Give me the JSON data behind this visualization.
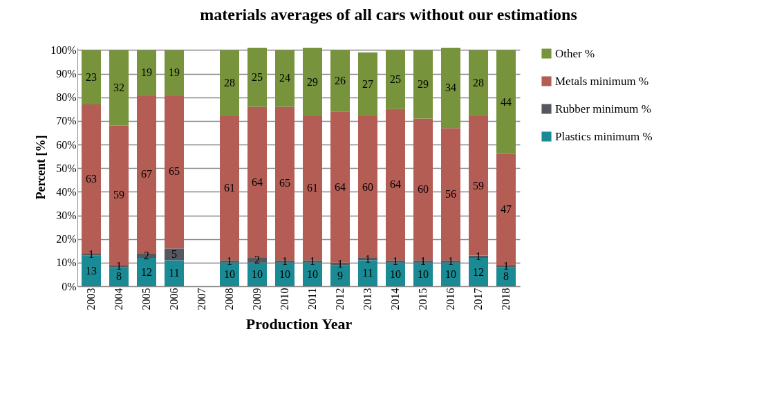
{
  "chart_data": {
    "type": "bar",
    "title": "materials averages of all cars without our estimations",
    "xlabel": "Production Year",
    "ylabel": "Percent [%]",
    "categories": [
      "2003",
      "2004",
      "2005",
      "2006",
      "2007",
      "2008",
      "2009",
      "2010",
      "2011",
      "2012",
      "2013",
      "2014",
      "2015",
      "2016",
      "2017",
      "2018"
    ],
    "series": [
      {
        "name": "Plastics minimum %",
        "color": "#1a8a94",
        "values": [
          13,
          8,
          12,
          11,
          null,
          10,
          10,
          10,
          10,
          9,
          11,
          10,
          10,
          10,
          12,
          8
        ]
      },
      {
        "name": "Rubber minimum %",
        "color": "#55585e",
        "values": [
          1,
          1,
          2,
          5,
          null,
          1,
          2,
          1,
          1,
          1,
          1,
          1,
          1,
          1,
          1,
          1
        ]
      },
      {
        "name": "Metals minimum %",
        "color": "#b35d55",
        "values": [
          63,
          59,
          67,
          65,
          null,
          61,
          64,
          65,
          61,
          64,
          60,
          64,
          60,
          56,
          59,
          47
        ]
      },
      {
        "name": "Other %",
        "color": "#77933c",
        "values": [
          23,
          32,
          19,
          19,
          null,
          28,
          25,
          24,
          29,
          26,
          27,
          25,
          29,
          34,
          28,
          44
        ]
      }
    ],
    "stacked": true,
    "data_labels": true,
    "ylim": [
      0,
      101
    ],
    "yticks": [
      {
        "value": 0,
        "label": "0%"
      },
      {
        "value": 10,
        "label": "10%"
      },
      {
        "value": 20,
        "label": "20%"
      },
      {
        "value": 30,
        "label": "30%"
      },
      {
        "value": 40,
        "label": "40%"
      },
      {
        "value": 50,
        "label": "50%"
      },
      {
        "value": 60,
        "label": "60%"
      },
      {
        "value": 70,
        "label": "70%"
      },
      {
        "value": 80,
        "label": "80%"
      },
      {
        "value": 90,
        "label": "90%"
      },
      {
        "value": 100,
        "label": "100%"
      }
    ],
    "grid": "y",
    "legend": "right"
  }
}
